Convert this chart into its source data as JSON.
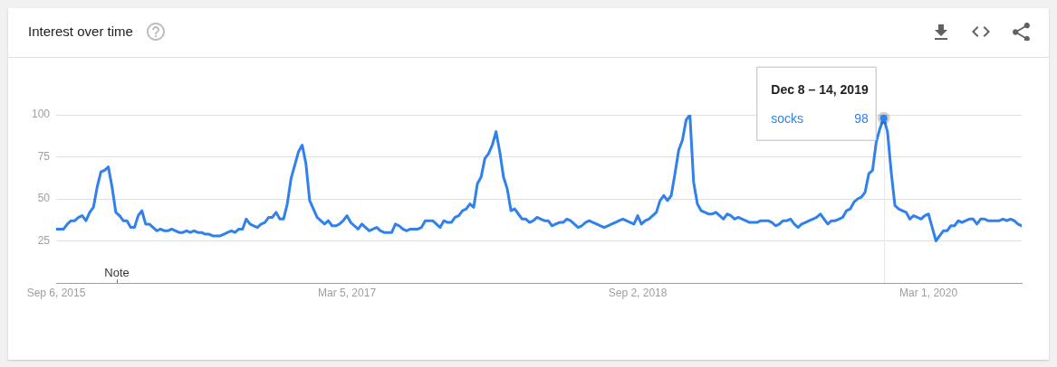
{
  "chart_data": {
    "type": "line",
    "title": "Interest over time",
    "x": [
      "2015-09-06",
      "2015-09-13",
      "2015-09-20",
      "2015-09-27",
      "2015-10-04",
      "2015-10-11",
      "2015-10-18",
      "2015-10-25",
      "2015-11-01",
      "2015-11-08",
      "2015-11-15",
      "2015-11-22",
      "2015-11-29",
      "2015-12-06",
      "2015-12-13",
      "2015-12-20",
      "2015-12-27",
      "2016-01-03",
      "2016-01-10",
      "2016-01-17",
      "2016-01-24",
      "2016-01-31",
      "2016-02-07",
      "2016-02-14",
      "2016-02-21",
      "2016-02-28",
      "2016-03-06",
      "2016-03-13",
      "2016-03-20",
      "2016-03-27",
      "2016-04-03",
      "2016-04-10",
      "2016-04-17",
      "2016-04-24",
      "2016-05-01",
      "2016-05-08",
      "2016-05-15",
      "2016-05-22",
      "2016-05-29",
      "2016-06-05",
      "2016-06-12",
      "2016-06-19",
      "2016-06-26",
      "2016-07-03",
      "2016-07-10",
      "2016-07-17",
      "2016-07-24",
      "2016-07-31",
      "2016-08-07",
      "2016-08-14",
      "2016-08-21",
      "2016-08-28",
      "2016-09-04",
      "2016-09-11",
      "2016-09-18",
      "2016-09-25",
      "2016-10-02",
      "2016-10-09",
      "2016-10-16",
      "2016-10-23",
      "2016-10-30",
      "2016-11-06",
      "2016-11-13",
      "2016-11-20",
      "2016-11-27",
      "2016-12-04",
      "2016-12-11",
      "2016-12-18",
      "2016-12-25",
      "2017-01-01",
      "2017-01-08",
      "2017-01-15",
      "2017-01-22",
      "2017-01-29",
      "2017-02-05",
      "2017-02-12",
      "2017-02-19",
      "2017-02-26",
      "2017-03-05",
      "2017-03-12",
      "2017-03-19",
      "2017-03-26",
      "2017-04-02",
      "2017-04-09",
      "2017-04-16",
      "2017-04-23",
      "2017-04-30",
      "2017-05-07",
      "2017-05-14",
      "2017-05-21",
      "2017-05-28",
      "2017-06-04",
      "2017-06-11",
      "2017-06-18",
      "2017-06-25",
      "2017-07-02",
      "2017-07-09",
      "2017-07-16",
      "2017-07-23",
      "2017-07-30",
      "2017-08-06",
      "2017-08-13",
      "2017-08-20",
      "2017-08-27",
      "2017-09-03",
      "2017-09-10",
      "2017-09-17",
      "2017-09-24",
      "2017-10-01",
      "2017-10-08",
      "2017-10-15",
      "2017-10-22",
      "2017-10-29",
      "2017-11-05",
      "2017-11-12",
      "2017-11-19",
      "2017-11-26",
      "2017-12-03",
      "2017-12-10",
      "2017-12-17",
      "2017-12-24",
      "2017-12-31",
      "2018-01-07",
      "2018-01-14",
      "2018-01-21",
      "2018-01-28",
      "2018-02-04",
      "2018-02-11",
      "2018-02-18",
      "2018-02-25",
      "2018-03-04",
      "2018-03-11",
      "2018-03-18",
      "2018-03-25",
      "2018-04-01",
      "2018-04-08",
      "2018-04-15",
      "2018-04-22",
      "2018-04-29",
      "2018-05-06",
      "2018-05-13",
      "2018-05-20",
      "2018-05-27",
      "2018-06-03",
      "2018-06-10",
      "2018-06-17",
      "2018-06-24",
      "2018-07-01",
      "2018-07-08",
      "2018-07-15",
      "2018-07-22",
      "2018-07-29",
      "2018-08-05",
      "2018-08-12",
      "2018-08-19",
      "2018-08-26",
      "2018-09-02",
      "2018-09-09",
      "2018-09-16",
      "2018-09-23",
      "2018-09-30",
      "2018-10-07",
      "2018-10-14",
      "2018-10-21",
      "2018-10-28",
      "2018-11-04",
      "2018-11-11",
      "2018-11-18",
      "2018-11-25",
      "2018-12-02",
      "2018-12-09",
      "2018-12-16",
      "2018-12-23",
      "2018-12-30",
      "2019-01-06",
      "2019-01-13",
      "2019-01-20",
      "2019-01-27",
      "2019-02-03",
      "2019-02-10",
      "2019-02-17",
      "2019-02-24",
      "2019-03-03",
      "2019-03-10",
      "2019-03-17",
      "2019-03-24",
      "2019-03-31",
      "2019-04-07",
      "2019-04-14",
      "2019-04-21",
      "2019-04-28",
      "2019-05-05",
      "2019-05-12",
      "2019-05-19",
      "2019-05-26",
      "2019-06-02",
      "2019-06-09",
      "2019-06-16",
      "2019-06-23",
      "2019-06-30",
      "2019-07-07",
      "2019-07-14",
      "2019-07-21",
      "2019-07-28",
      "2019-08-04",
      "2019-08-11",
      "2019-08-18",
      "2019-08-25",
      "2019-09-01",
      "2019-09-08",
      "2019-09-15",
      "2019-09-22",
      "2019-09-29",
      "2019-10-06",
      "2019-10-13",
      "2019-10-20",
      "2019-10-27",
      "2019-11-03",
      "2019-11-10",
      "2019-11-17",
      "2019-11-24",
      "2019-12-01",
      "2019-12-08",
      "2019-12-15",
      "2019-12-22",
      "2019-12-29",
      "2020-01-05",
      "2020-01-12",
      "2020-01-19",
      "2020-01-26",
      "2020-02-02",
      "2020-02-09",
      "2020-02-16",
      "2020-02-23",
      "2020-03-01",
      "2020-03-08",
      "2020-03-15",
      "2020-03-22",
      "2020-03-29",
      "2020-04-05",
      "2020-04-12",
      "2020-04-19",
      "2020-04-26",
      "2020-05-03",
      "2020-05-10",
      "2020-05-17",
      "2020-05-24",
      "2020-05-31",
      "2020-06-07",
      "2020-06-14",
      "2020-06-21",
      "2020-06-28",
      "2020-07-05",
      "2020-07-12",
      "2020-07-19",
      "2020-07-26",
      "2020-08-02",
      "2020-08-09",
      "2020-08-16",
      "2020-08-23"
    ],
    "series": [
      {
        "name": "socks",
        "color": "#3081ec",
        "values": [
          32,
          32,
          32,
          35,
          37,
          37,
          39,
          40,
          37,
          42,
          45,
          57,
          66,
          67,
          69,
          57,
          42,
          40,
          37,
          37,
          33,
          33,
          40,
          43,
          35,
          35,
          33,
          31,
          32,
          31,
          31,
          32,
          31,
          30,
          30,
          31,
          30,
          31,
          30,
          30,
          29,
          29,
          28,
          28,
          28,
          29,
          30,
          31,
          30,
          32,
          32,
          38,
          35,
          34,
          33,
          35,
          36,
          39,
          39,
          42,
          38,
          38,
          47,
          62,
          70,
          78,
          82,
          71,
          49,
          44,
          39,
          37,
          35,
          37,
          34,
          34,
          35,
          37,
          40,
          36,
          34,
          32,
          35,
          33,
          31,
          32,
          33,
          31,
          30,
          30,
          30,
          35,
          34,
          32,
          31,
          32,
          32,
          32,
          33,
          37,
          37,
          37,
          35,
          33,
          37,
          36,
          36,
          39,
          40,
          43,
          44,
          47,
          45,
          59,
          63,
          74,
          77,
          82,
          90,
          78,
          63,
          56,
          43,
          44,
          41,
          38,
          38,
          36,
          37,
          39,
          38,
          37,
          37,
          34,
          35,
          36,
          36,
          38,
          37,
          35,
          33,
          34,
          36,
          37,
          36,
          35,
          34,
          33,
          34,
          35,
          36,
          37,
          38,
          37,
          36,
          35,
          40,
          35,
          37,
          38,
          40,
          42,
          49,
          52,
          49,
          52,
          65,
          79,
          85,
          97,
          100,
          60,
          47,
          43,
          42,
          41,
          41,
          42,
          40,
          38,
          41,
          40,
          38,
          39,
          38,
          37,
          36,
          36,
          36,
          37,
          37,
          37,
          36,
          34,
          35,
          37,
          37,
          38,
          35,
          33,
          35,
          36,
          37,
          38,
          39,
          41,
          38,
          35,
          37,
          37,
          38,
          39,
          43,
          44,
          48,
          50,
          51,
          54,
          65,
          67,
          84,
          92,
          98,
          90,
          66,
          46,
          44,
          43,
          42,
          38,
          40,
          39,
          38,
          40,
          41,
          33,
          25,
          28,
          31,
          31,
          34,
          34,
          37,
          36,
          37,
          38,
          38,
          35,
          38,
          38,
          37,
          37,
          37,
          37,
          38,
          37,
          38,
          37,
          35,
          34
        ],
        "value_labels": [
          null,
          null,
          null,
          null,
          null,
          null,
          null,
          null,
          null,
          null,
          null,
          null,
          null,
          null,
          null,
          null,
          null,
          null,
          null,
          null,
          null,
          null,
          null,
          null,
          null,
          null,
          null,
          null,
          null,
          null,
          null,
          null,
          null,
          null,
          null,
          null,
          null,
          null,
          null,
          null,
          null,
          null,
          null,
          null,
          null,
          null,
          null,
          null,
          null,
          null,
          null,
          null,
          null,
          null,
          null,
          null,
          null,
          null,
          null,
          null,
          null,
          null,
          null,
          null,
          null,
          null,
          null,
          null,
          null,
          null,
          null,
          null,
          null,
          null,
          null,
          null,
          null,
          null,
          null,
          null,
          null,
          null,
          null,
          null,
          null,
          null,
          null,
          null,
          null,
          null,
          null,
          null,
          null,
          null,
          null,
          null,
          null,
          null,
          null,
          null,
          null,
          null,
          null,
          null,
          null,
          null,
          null,
          null,
          null,
          null,
          null,
          null,
          null,
          null,
          null,
          null,
          null,
          null,
          null,
          null,
          null,
          null,
          null,
          null,
          null,
          null,
          null,
          null,
          null,
          null,
          null,
          null,
          null,
          null,
          null,
          null,
          null,
          null,
          null,
          null,
          null,
          null,
          null,
          null,
          null,
          null,
          null,
          null,
          null,
          null,
          null,
          null,
          null,
          null,
          null,
          null,
          null,
          null,
          null,
          null,
          null,
          null,
          null,
          null,
          null,
          null,
          null,
          null,
          null,
          null,
          null,
          null,
          null,
          null,
          null,
          null,
          null,
          null,
          null,
          null,
          null,
          null,
          null,
          null,
          null,
          null,
          null,
          null,
          null,
          null,
          null,
          null,
          null,
          null,
          null,
          null,
          null,
          null,
          null,
          null,
          null,
          null,
          null,
          null,
          null,
          null,
          null,
          null,
          null,
          null,
          null,
          null,
          null,
          null,
          null,
          null,
          null,
          null,
          null,
          null,
          null,
          null,
          "98",
          null,
          null,
          null,
          null,
          null,
          null,
          null,
          null,
          null,
          null,
          null,
          null,
          null,
          null,
          null,
          null,
          null,
          null,
          null,
          null,
          null,
          null,
          null,
          null,
          null,
          null,
          null,
          null,
          null,
          null,
          null,
          null,
          null,
          null,
          null,
          null,
          null
        ]
      }
    ],
    "xlim": [
      "2015-09-06",
      "2020-08-23"
    ],
    "xticks": [
      {
        "value": "2015-09-06",
        "label": "Sep 6, 2015"
      },
      {
        "value": "2017-03-05",
        "label": "Mar 5, 2017"
      },
      {
        "value": "2018-09-02",
        "label": "Sep 2, 2018"
      },
      {
        "value": "2020-03-01",
        "label": "Mar 1, 2020"
      }
    ],
    "ylim": [
      0,
      100
    ],
    "yticks": [
      25,
      50,
      75,
      100
    ],
    "grid": "y",
    "ref_lines": [
      {
        "axis": "x",
        "value": "2019-12-08",
        "label": "Dec 8 – 14, 2019",
        "color": "#e8e8e8"
      }
    ],
    "annotations": [
      "Note"
    ]
  }
}
